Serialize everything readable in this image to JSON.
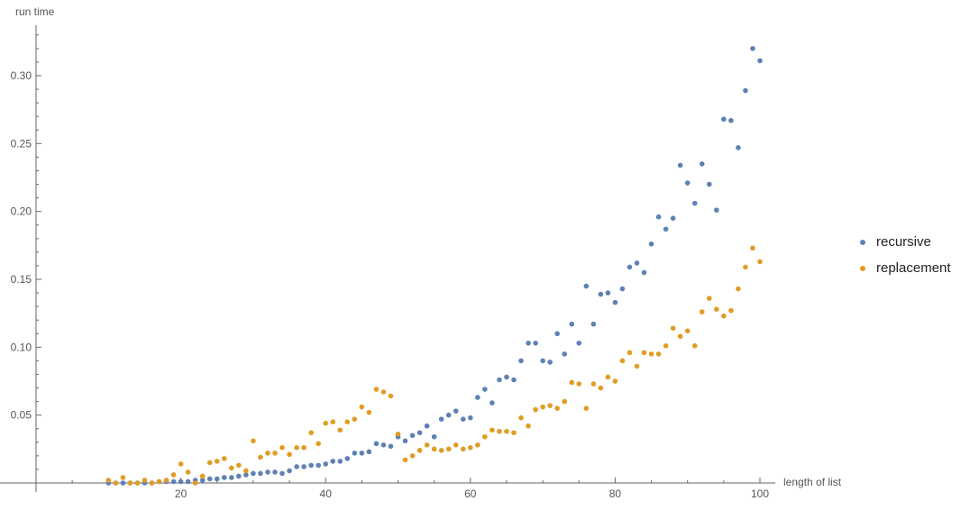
{
  "chart_data": {
    "type": "scatter",
    "xlabel": "length of list",
    "ylabel": "run time",
    "xlim": [
      0,
      100
    ],
    "ylim": [
      0,
      0.33
    ],
    "xticks": [
      20,
      40,
      60,
      80,
      100
    ],
    "yticks": [
      0.05,
      0.1,
      0.15,
      0.2,
      0.25,
      0.3
    ],
    "xtick_labels": [
      "20",
      "40",
      "60",
      "80",
      "100"
    ],
    "ytick_labels": [
      "0.05",
      "0.10",
      "0.15",
      "0.20",
      "0.25",
      "0.30"
    ],
    "grid": false,
    "legend_position": "right",
    "series": [
      {
        "name": "recursive",
        "color": "#5e81b5",
        "x": [
          10,
          11,
          12,
          13,
          14,
          15,
          16,
          17,
          18,
          19,
          20,
          21,
          22,
          23,
          24,
          25,
          26,
          27,
          28,
          29,
          30,
          31,
          32,
          33,
          34,
          35,
          36,
          37,
          38,
          39,
          40,
          41,
          42,
          43,
          44,
          45,
          46,
          47,
          48,
          49,
          50,
          51,
          52,
          53,
          54,
          55,
          56,
          57,
          58,
          59,
          60,
          61,
          62,
          63,
          64,
          65,
          66,
          67,
          68,
          69,
          70,
          71,
          72,
          73,
          74,
          75,
          76,
          77,
          78,
          79,
          80,
          81,
          82,
          83,
          84,
          85,
          86,
          87,
          88,
          89,
          90,
          91,
          92,
          93,
          94,
          95,
          96,
          97,
          98,
          99,
          100
        ],
        "y": [
          0.0,
          0.0,
          0.0,
          0.0,
          0.0,
          0.0,
          0.0,
          0.001,
          0.001,
          0.001,
          0.001,
          0.001,
          0.002,
          0.002,
          0.003,
          0.003,
          0.004,
          0.004,
          0.005,
          0.006,
          0.007,
          0.007,
          0.008,
          0.008,
          0.007,
          0.009,
          0.012,
          0.012,
          0.013,
          0.013,
          0.014,
          0.016,
          0.016,
          0.018,
          0.022,
          0.022,
          0.023,
          0.029,
          0.028,
          0.027,
          0.034,
          0.031,
          0.035,
          0.037,
          0.042,
          0.034,
          0.047,
          0.05,
          0.053,
          0.047,
          0.048,
          0.063,
          0.069,
          0.059,
          0.076,
          0.078,
          0.076,
          0.09,
          0.103,
          0.103,
          0.09,
          0.089,
          0.11,
          0.095,
          0.117,
          0.103,
          0.145,
          0.117,
          0.139,
          0.14,
          0.133,
          0.143,
          0.159,
          0.162,
          0.155,
          0.176,
          0.196,
          0.187,
          0.195,
          0.234,
          0.221,
          0.206,
          0.235,
          0.22,
          0.201,
          0.268,
          0.267,
          0.247,
          0.289,
          0.32,
          0.311
        ]
      },
      {
        "name": "replacement",
        "color": "#e19c24",
        "x": [
          10,
          11,
          12,
          13,
          14,
          15,
          16,
          17,
          18,
          19,
          20,
          21,
          22,
          23,
          24,
          25,
          26,
          27,
          28,
          29,
          30,
          31,
          32,
          33,
          34,
          35,
          36,
          37,
          38,
          39,
          40,
          41,
          42,
          43,
          44,
          45,
          46,
          47,
          48,
          49,
          50,
          51,
          52,
          53,
          54,
          55,
          56,
          57,
          58,
          59,
          60,
          61,
          62,
          63,
          64,
          65,
          66,
          67,
          68,
          69,
          70,
          71,
          72,
          73,
          74,
          75,
          76,
          77,
          78,
          79,
          80,
          81,
          82,
          83,
          84,
          85,
          86,
          87,
          88,
          89,
          90,
          91,
          92,
          93,
          94,
          95,
          96,
          97,
          98,
          99,
          100
        ],
        "y": [
          0.002,
          0.0,
          0.004,
          0.0,
          0.0,
          0.002,
          0.0,
          0.001,
          0.002,
          0.006,
          0.014,
          0.008,
          0.0,
          0.005,
          0.015,
          0.016,
          0.018,
          0.011,
          0.013,
          0.009,
          0.031,
          0.019,
          0.022,
          0.022,
          0.026,
          0.021,
          0.026,
          0.026,
          0.037,
          0.029,
          0.044,
          0.045,
          0.039,
          0.045,
          0.047,
          0.056,
          0.052,
          0.069,
          0.067,
          0.064,
          0.036,
          0.017,
          0.02,
          0.024,
          0.028,
          0.025,
          0.024,
          0.025,
          0.028,
          0.025,
          0.026,
          0.028,
          0.034,
          0.039,
          0.038,
          0.038,
          0.037,
          0.048,
          0.042,
          0.054,
          0.056,
          0.057,
          0.055,
          0.06,
          0.074,
          0.073,
          0.055,
          0.073,
          0.07,
          0.078,
          0.075,
          0.09,
          0.096,
          0.086,
          0.096,
          0.095,
          0.095,
          0.101,
          0.114,
          0.108,
          0.112,
          0.101,
          0.126,
          0.136,
          0.128,
          0.123,
          0.127,
          0.143,
          0.159,
          0.173,
          0.163
        ]
      }
    ]
  }
}
